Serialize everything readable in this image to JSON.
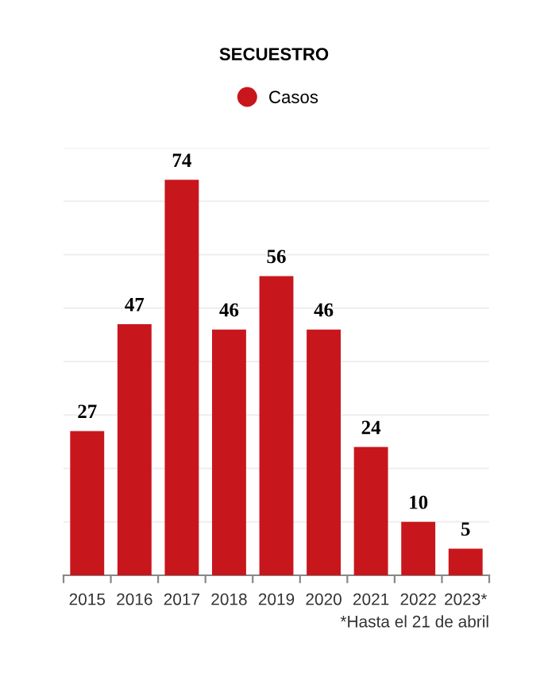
{
  "chart_data": {
    "type": "bar",
    "title": "SECUESTRO",
    "categories": [
      "2015",
      "2016",
      "2017",
      "2018",
      "2019",
      "2020",
      "2021",
      "2022",
      "2023*"
    ],
    "series": [
      {
        "name": "Casos",
        "color": "#c8161d",
        "values": [
          27,
          47,
          74,
          46,
          56,
          46,
          24,
          10,
          5
        ]
      }
    ],
    "ylim": [
      0,
      80
    ],
    "yticks": [
      {
        "value": 0,
        "label": null
      },
      {
        "value": 10,
        "label": null
      },
      {
        "value": 20,
        "label": null
      },
      {
        "value": 30,
        "label": null
      },
      {
        "value": 40,
        "label": null
      },
      {
        "value": 50,
        "label": null
      },
      {
        "value": 60,
        "label": null
      },
      {
        "value": 70,
        "label": null
      },
      {
        "value": 80,
        "label": null
      }
    ],
    "grid": "y",
    "legend": "top",
    "data_labels": true,
    "tick_labels": "x",
    "annotations": [
      "*Hasta el 21 de abril"
    ]
  }
}
